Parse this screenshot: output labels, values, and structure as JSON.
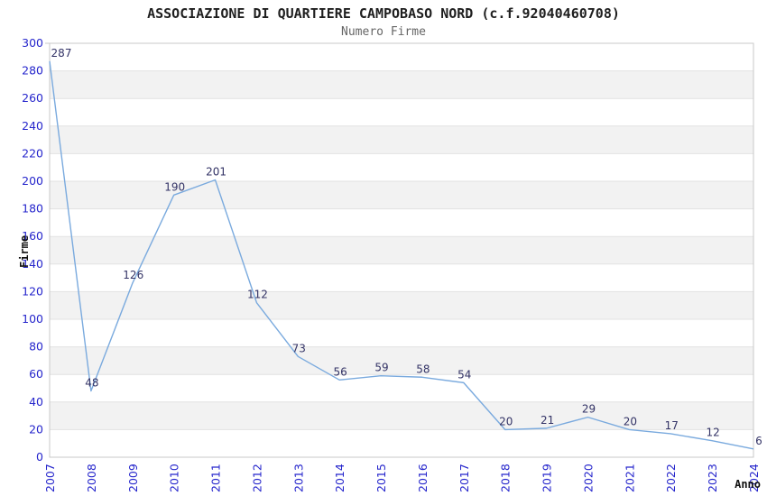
{
  "chart_data": {
    "type": "line",
    "title": "ASSOCIAZIONE DI QUARTIERE CAMPOBASO NORD (c.f.92040460708)",
    "subtitle": "Numero Firme",
    "xlabel": "Anno",
    "ylabel": "Firme",
    "categories": [
      "2007",
      "2008",
      "2009",
      "2010",
      "2011",
      "2012",
      "2013",
      "2014",
      "2015",
      "2016",
      "2017",
      "2018",
      "2019",
      "2020",
      "2021",
      "2022",
      "2023",
      "2024"
    ],
    "values": [
      287,
      48,
      126,
      190,
      201,
      112,
      73,
      56,
      59,
      58,
      54,
      20,
      21,
      29,
      20,
      17,
      12,
      6
    ],
    "ylim": [
      0,
      300
    ],
    "ytick_step": 20,
    "grid": "horizontal-gridlines-with-alternating-bands",
    "legend": "none",
    "point_labels_visible": true,
    "colors": {
      "line": "#7aaade",
      "tick_label": "#2626cc",
      "point_label": "#333366",
      "band": "#f2f2f2",
      "gridline": "#e2e2e2",
      "border": "#c9c9c9",
      "title": "#1f1f1f",
      "subtitle": "#666666",
      "axis_title": "#111111",
      "background": "#ffffff"
    }
  }
}
